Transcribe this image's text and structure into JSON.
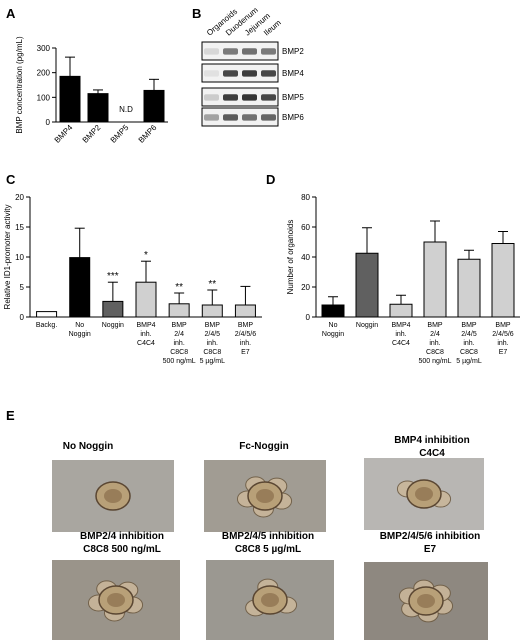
{
  "panels": {
    "A": {
      "letter": "A"
    },
    "B": {
      "letter": "B"
    },
    "C": {
      "letter": "C"
    },
    "D": {
      "letter": "D"
    },
    "E": {
      "letter": "E"
    }
  },
  "chart_data": [
    {
      "id": "A",
      "type": "bar",
      "ylabel": "BMP concentration (pg/mL)",
      "ylim": [
        0,
        300
      ],
      "yticks": [
        0,
        100,
        200,
        300
      ],
      "categories": [
        "BMP4",
        "BMP2",
        "BMP5",
        "BMP6"
      ],
      "values": [
        185,
        115,
        null,
        128
      ],
      "errors": [
        78,
        15,
        null,
        45
      ],
      "annotations": [
        {
          "category": "BMP5",
          "text": "N.D"
        }
      ],
      "colors": [
        "#000000"
      ]
    },
    {
      "id": "C",
      "type": "bar",
      "ylabel": "Relative ID1-promoter activity",
      "ylim": [
        0,
        20
      ],
      "yticks": [
        0,
        5,
        10,
        15,
        20
      ],
      "categories": [
        [
          "Backg."
        ],
        [
          "No",
          "Noggin"
        ],
        [
          "Noggin"
        ],
        [
          "BMP4",
          "inh.",
          "C4C4"
        ],
        [
          "BMP",
          "2/4",
          "inh.",
          "C8C8",
          "500 ng/mL"
        ],
        [
          "BMP",
          "2/4/5",
          "inh.",
          "C8C8",
          "5 µg/mL"
        ],
        [
          "BMP",
          "2/4/5/6",
          "inh.",
          "E7"
        ]
      ],
      "values": [
        0.9,
        9.9,
        2.6,
        5.8,
        2.2,
        2.0,
        2.0
      ],
      "errors": [
        0,
        4.9,
        3.2,
        3.5,
        1.8,
        2.5,
        3.1
      ],
      "fills": [
        "#ffffff",
        "#000000",
        "#606060",
        "#d0d0d0",
        "#d0d0d0",
        "#d0d0d0",
        "#d0d0d0"
      ],
      "significance": [
        "",
        "",
        "***",
        "*",
        "**",
        "**",
        ""
      ]
    },
    {
      "id": "D",
      "type": "bar",
      "ylabel": "Number of organoids",
      "ylim": [
        0,
        80
      ],
      "yticks": [
        0,
        20,
        40,
        60,
        80
      ],
      "categories": [
        [
          "No",
          "Noggin"
        ],
        [
          "Noggin"
        ],
        [
          "BMP4",
          "inh.",
          "C4C4"
        ],
        [
          "BMP",
          "2/4",
          "inh.",
          "C8C8",
          "500 ng/mL"
        ],
        [
          "BMP",
          "2/4/5",
          "inh.",
          "C8C8",
          "5 µg/mL"
        ],
        [
          "BMP",
          "2/4/5/6",
          "inh.",
          "E7"
        ]
      ],
      "values": [
        8,
        42.5,
        8.5,
        50,
        38.5,
        49
      ],
      "errors": [
        5.5,
        17,
        6,
        14,
        6,
        8
      ],
      "fills": [
        "#000000",
        "#606060",
        "#d0d0d0",
        "#d0d0d0",
        "#d0d0d0",
        "#d0d0d0"
      ]
    }
  ],
  "blot": {
    "columns": [
      "Organoids",
      "Duodenum",
      "Jejunum",
      "Ileum"
    ],
    "rows": [
      {
        "label": "BMP2",
        "intensities": [
          0.1,
          0.55,
          0.6,
          0.55
        ]
      },
      {
        "label": "BMP4",
        "intensities": [
          0.05,
          0.8,
          0.85,
          0.8
        ]
      },
      {
        "label": "BMP5",
        "intensities": [
          0.15,
          0.85,
          0.9,
          0.8
        ]
      },
      {
        "label": "BMP6",
        "intensities": [
          0.35,
          0.7,
          0.6,
          0.65
        ]
      }
    ]
  },
  "micrographs": [
    {
      "title": [
        "No Noggin"
      ]
    },
    {
      "title": [
        "Fc-Noggin"
      ]
    },
    {
      "title": [
        "BMP4 inhibition",
        "C4C4"
      ]
    },
    {
      "title": [
        "BMP2/4 inhibition",
        "C8C8 500 ng/mL"
      ]
    },
    {
      "title": [
        "BMP2/4/5 inhibition",
        "C8C8 5 µg/mL"
      ]
    },
    {
      "title": [
        "BMP2/4/5/6 inhibition",
        "E7"
      ]
    }
  ]
}
